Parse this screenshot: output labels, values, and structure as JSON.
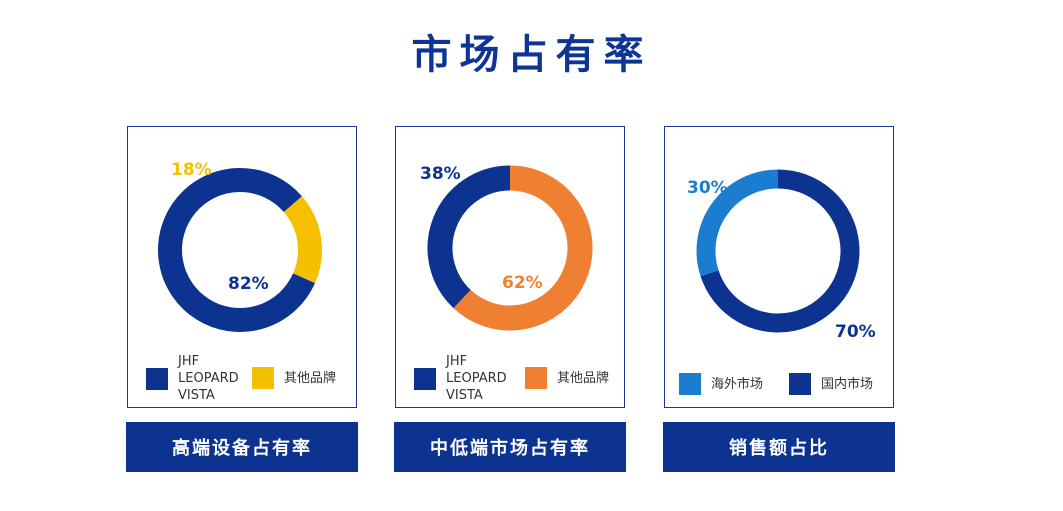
{
  "title": "市场占有率",
  "charts": [
    {
      "caption": "高端设备占有率",
      "legend": [
        {
          "label": "JHF\nLEOPARD\nVISTA",
          "color": "#0c3390"
        },
        {
          "label": "其他品牌",
          "color": "#f5c000"
        }
      ],
      "slices": [
        {
          "value_label": "82%",
          "color": "#0c3390"
        },
        {
          "value_label": "18%",
          "color": "#f5c000"
        }
      ]
    },
    {
      "caption": "中低端市场占有率",
      "legend": [
        {
          "label": "JHF\nLEOPARD\nVISTA",
          "color": "#0c3390"
        },
        {
          "label": "其他品牌",
          "color": "#ef7f31"
        }
      ],
      "slices": [
        {
          "value_label": "38%",
          "color": "#0c3390"
        },
        {
          "value_label": "62%",
          "color": "#ef7f31"
        }
      ]
    },
    {
      "caption": "销售额占比",
      "legend": [
        {
          "label": "海外市场",
          "color": "#1a7dd0"
        },
        {
          "label": "国内市场",
          "color": "#0c3390"
        }
      ],
      "slices": [
        {
          "value_label": "30%",
          "color": "#1a7dd0"
        },
        {
          "value_label": "70%",
          "color": "#0c3390"
        }
      ]
    }
  ],
  "chart_data": [
    {
      "type": "pie",
      "title": "高端设备占有率",
      "donut": true,
      "labels": [
        "JHF LEOPARD VISTA",
        "其他品牌"
      ],
      "values": [
        82,
        18
      ],
      "colors": [
        "#0c3390",
        "#f5c000"
      ],
      "legend": "bottom"
    },
    {
      "type": "pie",
      "title": "中低端市场占有率",
      "donut": true,
      "labels": [
        "JHF LEOPARD VISTA",
        "其他品牌"
      ],
      "values": [
        38,
        62
      ],
      "colors": [
        "#0c3390",
        "#ef7f31"
      ],
      "legend": "bottom"
    },
    {
      "type": "pie",
      "title": "销售额占比",
      "donut": true,
      "labels": [
        "海外市场",
        "国内市场"
      ],
      "values": [
        30,
        70
      ],
      "colors": [
        "#1a7dd0",
        "#0c3390"
      ],
      "legend": "bottom"
    }
  ]
}
